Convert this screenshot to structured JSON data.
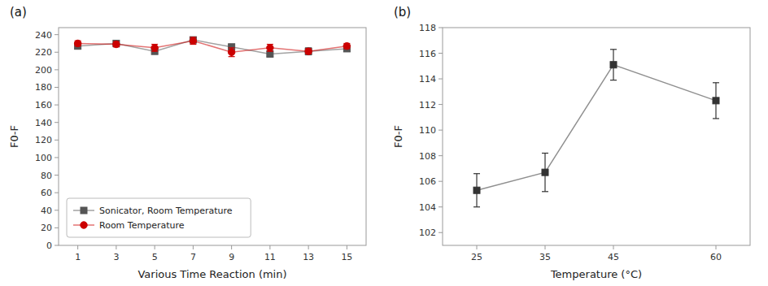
{
  "chart_data": [
    {
      "type": "line",
      "title": "(a)",
      "xlabel": "Various Time Reaction (min)",
      "ylabel": "F0-F",
      "x": [
        1,
        3,
        5,
        7,
        9,
        11,
        13,
        15
      ],
      "series": [
        {
          "name": "Sonicator, Room Temperature",
          "color": "#555555",
          "marker": "square",
          "line_style": "solid",
          "values": [
            227,
            230,
            221,
            234,
            226,
            218,
            221,
            224
          ],
          "errors": [
            3,
            3,
            3,
            3,
            3,
            3,
            4,
            3
          ]
        },
        {
          "name": "Room Temperature",
          "color": "#cc0000",
          "marker": "circle",
          "line_style": "solid",
          "values": [
            230,
            229,
            225,
            233,
            220,
            225,
            221,
            227
          ],
          "errors": [
            3,
            3,
            4,
            4,
            5,
            4,
            3,
            3
          ]
        }
      ],
      "xlim": [
        0,
        16
      ],
      "xticks": [
        1,
        3,
        5,
        7,
        9,
        11,
        13,
        15
      ],
      "ylim": [
        0,
        248
      ],
      "yticks": [
        0,
        20,
        40,
        60,
        80,
        100,
        120,
        140,
        160,
        180,
        200,
        220,
        240
      ],
      "grid": false,
      "legend": "lower left"
    },
    {
      "type": "line",
      "title": "(b)",
      "xlabel": "Temperature (°C)",
      "ylabel": "F0-F",
      "x": [
        25,
        35,
        45,
        60
      ],
      "series": [
        {
          "color": "#333333",
          "marker": "square",
          "line_style": "solid",
          "values": [
            105.3,
            106.7,
            115.1,
            112.3
          ],
          "errors": [
            1.3,
            1.5,
            1.2,
            1.4
          ]
        }
      ],
      "xlim": [
        20,
        65
      ],
      "xticks": [
        25,
        35,
        45,
        60
      ],
      "ylim": [
        101,
        118
      ],
      "yticks": [
        102,
        104,
        106,
        108,
        110,
        112,
        114,
        116,
        118
      ],
      "grid": false
    }
  ]
}
